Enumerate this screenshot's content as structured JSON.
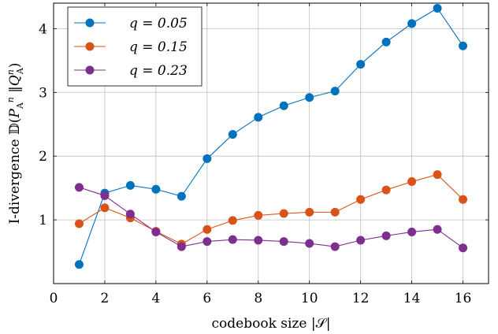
{
  "chart_data": {
    "type": "line",
    "xlabel": "codebook size |𝒮|",
    "ylabel": "I-divergence 𝔻(P_A^n ‖ Q_A^n)",
    "ylabel_parts": {
      "prefix": "I-divergence 𝔻(",
      "p": "P",
      "p_sub": "A",
      "p_sup": "n",
      "sep": " ‖",
      "q": "Q",
      "q_sup": "n",
      "q_sub": "A",
      "suffix": ")"
    },
    "xlim": [
      0,
      17
    ],
    "ylim": [
      0,
      4.4
    ],
    "xticks": [
      0,
      2,
      4,
      6,
      8,
      10,
      12,
      14,
      16
    ],
    "yticks": [
      1,
      2,
      3,
      4
    ],
    "grid": true,
    "legend_position": "top-left",
    "x": [
      1,
      2,
      3,
      4,
      5,
      6,
      7,
      8,
      9,
      10,
      11,
      12,
      13,
      14,
      15,
      16
    ],
    "series": [
      {
        "name": "q = 0.05",
        "color": "#0072bd",
        "values": [
          0.3,
          1.42,
          1.54,
          1.48,
          1.37,
          1.96,
          2.34,
          2.61,
          2.79,
          2.92,
          3.02,
          3.44,
          3.79,
          4.08,
          4.32,
          3.73
        ]
      },
      {
        "name": "q = 0.15",
        "color": "#d95319",
        "values": [
          0.94,
          1.19,
          1.03,
          0.82,
          0.62,
          0.85,
          0.99,
          1.07,
          1.1,
          1.12,
          1.12,
          1.32,
          1.47,
          1.6,
          1.71,
          1.32
        ]
      },
      {
        "name": "q = 0.23",
        "color": "#7e2f8e",
        "values": [
          1.51,
          1.38,
          1.09,
          0.81,
          0.58,
          0.66,
          0.69,
          0.68,
          0.66,
          0.63,
          0.58,
          0.68,
          0.75,
          0.81,
          0.85,
          0.56
        ]
      }
    ]
  }
}
